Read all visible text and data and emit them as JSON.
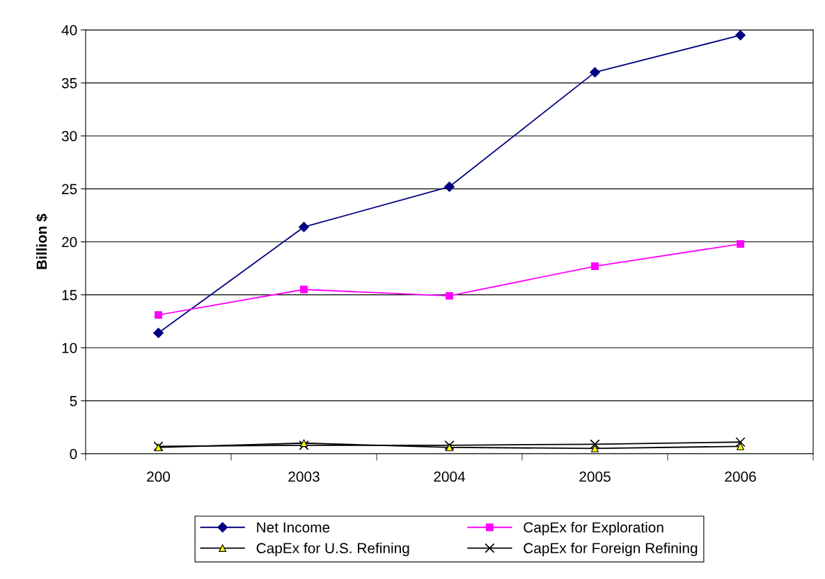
{
  "chart_data": {
    "type": "line",
    "ylabel": "Billion $",
    "categories": [
      "200",
      "2003",
      "2004",
      "2005",
      "2006"
    ],
    "series": [
      {
        "name": "Net Income",
        "color": "#000080",
        "marker": "diamond",
        "values": [
          11.4,
          21.4,
          25.2,
          36.0,
          39.5
        ]
      },
      {
        "name": "CapEx for Exploration",
        "color": "#ff00ff",
        "marker": "square",
        "values": [
          13.1,
          15.5,
          14.9,
          17.7,
          19.8
        ]
      },
      {
        "name": "CapEx for U.S. Refining",
        "color": "#000000",
        "marker": "triangle",
        "values": [
          0.6,
          1.0,
          0.6,
          0.5,
          0.7
        ]
      },
      {
        "name": "CapEx for Foreign Refining",
        "color": "#000000",
        "marker": "cross",
        "values": [
          0.7,
          0.8,
          0.8,
          0.9,
          1.1
        ]
      }
    ],
    "ylim": [
      0,
      40
    ],
    "yticks": [
      0,
      5,
      10,
      15,
      20,
      25,
      30,
      35,
      40
    ],
    "grid": "y",
    "legend": "bottom",
    "line_style": "solid"
  }
}
